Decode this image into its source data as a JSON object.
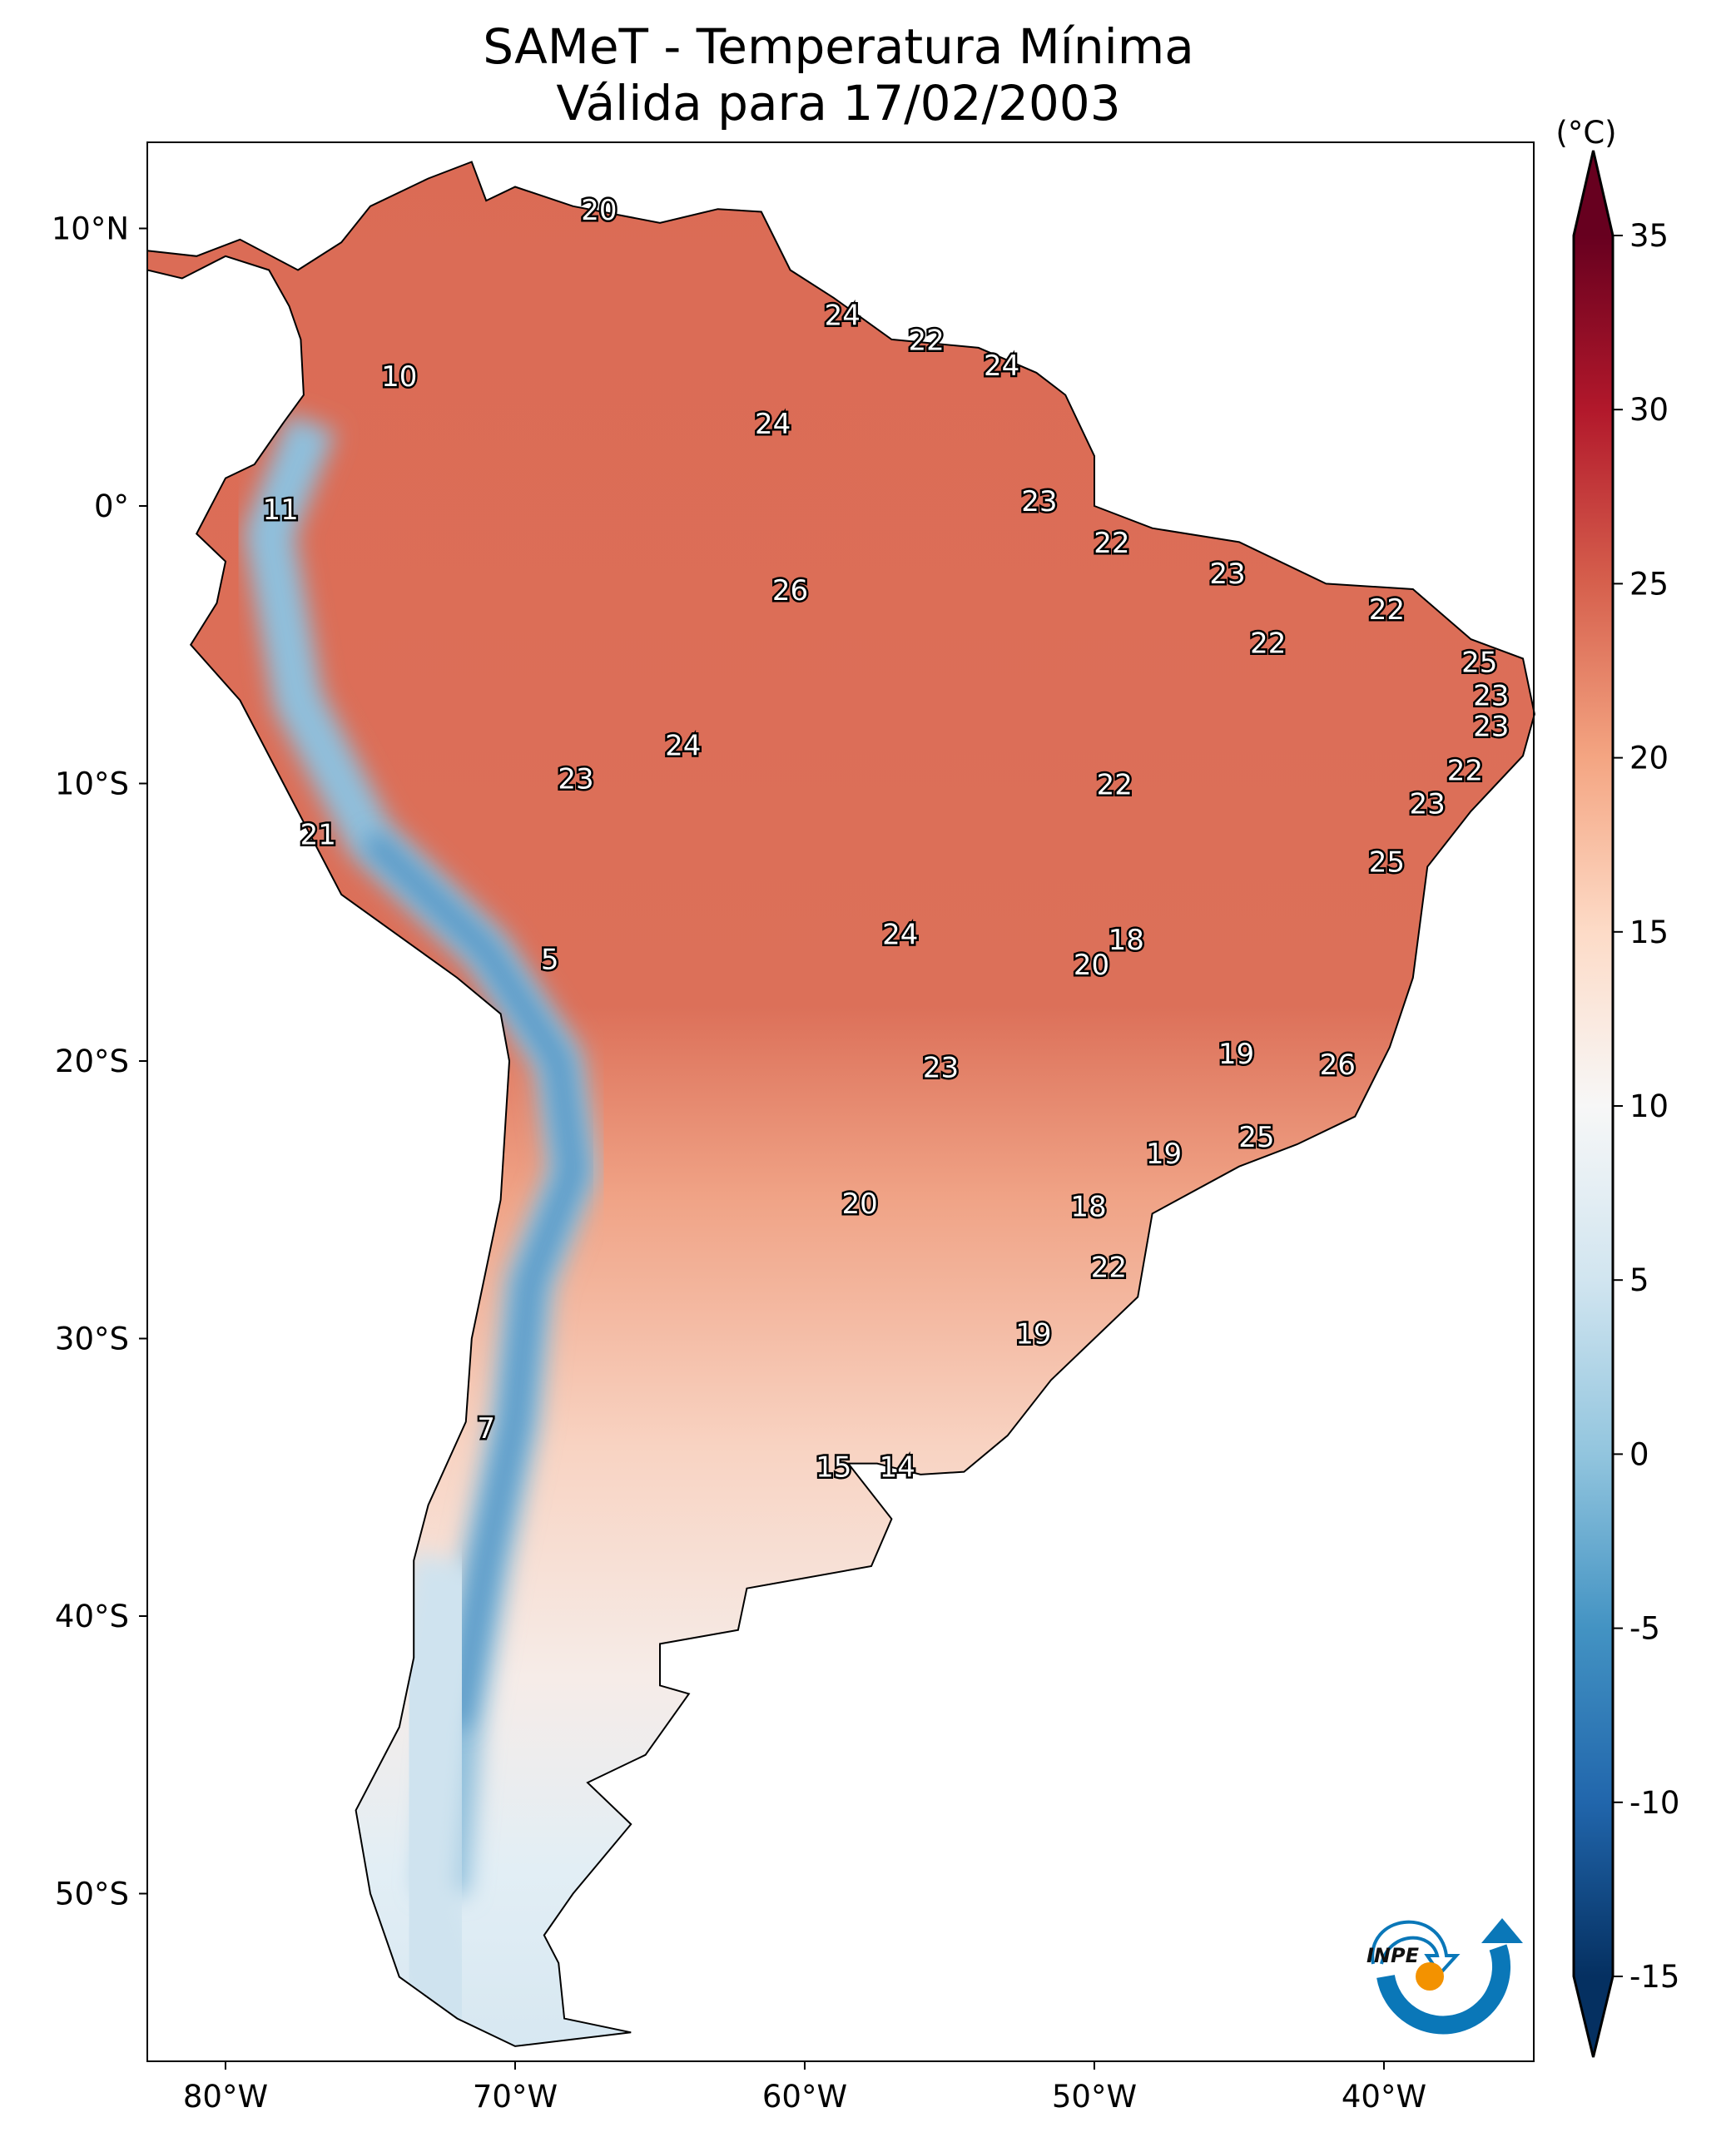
{
  "title": {
    "line1": "SAMeT - Temperatura Mínima",
    "line2": "Válida para 17/02/2003"
  },
  "colorbar": {
    "unit_label": "(°C)",
    "range": [
      -15,
      35
    ],
    "extend": "both",
    "colormap": "RdBu_r",
    "ticks": [
      "35",
      "30",
      "25",
      "20",
      "15",
      "10",
      "5",
      "0",
      "-5",
      "-10",
      "-15"
    ],
    "tick_values": [
      35,
      30,
      25,
      20,
      15,
      10,
      5,
      0,
      -5,
      -10,
      -15
    ],
    "stops": [
      {
        "v": -15,
        "c": "#053061"
      },
      {
        "v": -10,
        "c": "#2166ac"
      },
      {
        "v": -5,
        "c": "#4393c3"
      },
      {
        "v": 0,
        "c": "#92c5de"
      },
      {
        "v": 5,
        "c": "#d1e5f0"
      },
      {
        "v": 10,
        "c": "#f7f7f7"
      },
      {
        "v": 15,
        "c": "#fddbc7"
      },
      {
        "v": 20,
        "c": "#f4a582"
      },
      {
        "v": 25,
        "c": "#d6604d"
      },
      {
        "v": 30,
        "c": "#b2182b"
      },
      {
        "v": 35,
        "c": "#67001f"
      }
    ]
  },
  "map": {
    "lon_range": [
      -82.7,
      -33.5
    ],
    "lat_range": [
      -56.2,
      12.9
    ],
    "lon_ticks": [
      {
        "v": -80,
        "t": "80°W"
      },
      {
        "v": -70,
        "t": "70°W"
      },
      {
        "v": -60,
        "t": "60°W"
      },
      {
        "v": -50,
        "t": "50°W"
      },
      {
        "v": -40,
        "t": "40°W"
      }
    ],
    "lat_ticks": [
      {
        "v": 10,
        "t": "10°N"
      },
      {
        "v": 0,
        "t": "0°"
      },
      {
        "v": -10,
        "t": "10°S"
      },
      {
        "v": -20,
        "t": "20°S"
      },
      {
        "v": -30,
        "t": "30°S"
      },
      {
        "v": -40,
        "t": "40°S"
      },
      {
        "v": -50,
        "t": "50°S"
      }
    ],
    "labels": [
      {
        "t": "20",
        "lon": -67.1,
        "lat": 10.6
      },
      {
        "t": "24",
        "lon": -58.7,
        "lat": 6.8
      },
      {
        "t": "22",
        "lon": -55.8,
        "lat": 5.9
      },
      {
        "t": "24",
        "lon": -53.2,
        "lat": 5.0
      },
      {
        "t": "10",
        "lon": -74.0,
        "lat": 4.6
      },
      {
        "t": "24",
        "lon": -61.1,
        "lat": 2.9
      },
      {
        "t": "11",
        "lon": -78.1,
        "lat": -0.2
      },
      {
        "t": "23",
        "lon": -51.9,
        "lat": 0.1
      },
      {
        "t": "22",
        "lon": -49.4,
        "lat": -1.4
      },
      {
        "t": "23",
        "lon": -45.4,
        "lat": -2.5
      },
      {
        "t": "26",
        "lon": -60.5,
        "lat": -3.1
      },
      {
        "t": "22",
        "lon": -39.9,
        "lat": -3.8
      },
      {
        "t": "22",
        "lon": -44.0,
        "lat": -5.0
      },
      {
        "t": "25",
        "lon": -36.7,
        "lat": -5.7
      },
      {
        "t": "23",
        "lon": -36.3,
        "lat": -6.9
      },
      {
        "t": "23",
        "lon": -36.3,
        "lat": -8.0
      },
      {
        "t": "24",
        "lon": -64.2,
        "lat": -8.7
      },
      {
        "t": "22",
        "lon": -37.2,
        "lat": -9.6
      },
      {
        "t": "23",
        "lon": -67.9,
        "lat": -9.9
      },
      {
        "t": "22",
        "lon": -49.3,
        "lat": -10.1
      },
      {
        "t": "23",
        "lon": -38.5,
        "lat": -10.8
      },
      {
        "t": "21",
        "lon": -76.8,
        "lat": -11.9
      },
      {
        "t": "25",
        "lon": -39.9,
        "lat": -12.9
      },
      {
        "t": "24",
        "lon": -56.7,
        "lat": -15.5
      },
      {
        "t": "18",
        "lon": -48.9,
        "lat": -15.7
      },
      {
        "t": "5",
        "lon": -68.8,
        "lat": -16.4
      },
      {
        "t": "20",
        "lon": -50.1,
        "lat": -16.6
      },
      {
        "t": "19",
        "lon": -45.1,
        "lat": -19.8
      },
      {
        "t": "26",
        "lon": -41.6,
        "lat": -20.2
      },
      {
        "t": "23",
        "lon": -55.3,
        "lat": -20.3
      },
      {
        "t": "25",
        "lon": -44.4,
        "lat": -22.8
      },
      {
        "t": "19",
        "lon": -47.6,
        "lat": -23.4
      },
      {
        "t": "20",
        "lon": -58.1,
        "lat": -25.2
      },
      {
        "t": "18",
        "lon": -50.2,
        "lat": -25.3
      },
      {
        "t": "22",
        "lon": -49.5,
        "lat": -27.5
      },
      {
        "t": "19",
        "lon": -52.1,
        "lat": -29.9
      },
      {
        "t": "7",
        "lon": -71.0,
        "lat": -33.3
      },
      {
        "t": "15",
        "lon": -59.0,
        "lat": -34.7
      },
      {
        "t": "14",
        "lon": -56.8,
        "lat": -34.7
      }
    ]
  },
  "logo": {
    "text": "INPE",
    "colors": {
      "blue": "#0a77b8",
      "orange": "#f39200"
    }
  }
}
